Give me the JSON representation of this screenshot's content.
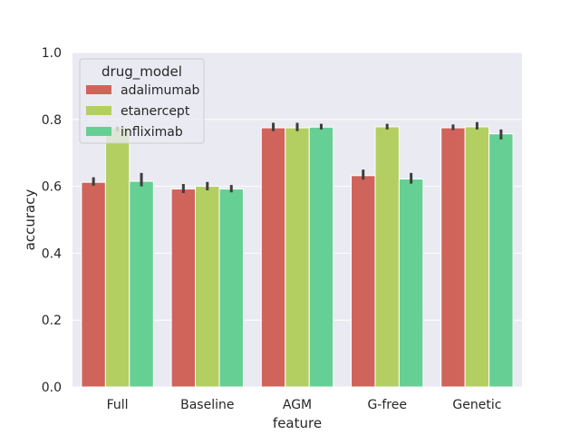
{
  "chart_data": {
    "type": "bar",
    "title": "",
    "xlabel": "feature",
    "ylabel": "accuracy",
    "ylim": [
      0,
      1.0
    ],
    "yticks": [
      0.0,
      0.2,
      0.4,
      0.6,
      0.8,
      1.0
    ],
    "ytick_labels": [
      "0.0",
      "0.2",
      "0.4",
      "0.6",
      "0.8",
      "1.0"
    ],
    "grid": true,
    "categories": [
      "Full",
      "Baseline",
      "AGM",
      "G-free",
      "Genetic"
    ],
    "legend": {
      "title": "drug_model",
      "placement": "top-left"
    },
    "series": [
      {
        "name": "adalimumab",
        "color": "#d0645a",
        "values": [
          0.612,
          0.592,
          0.775,
          0.632,
          0.775
        ],
        "err_low": [
          0.602,
          0.58,
          0.765,
          0.62,
          0.768
        ],
        "err_high": [
          0.627,
          0.607,
          0.79,
          0.65,
          0.785
        ]
      },
      {
        "name": "etanercept",
        "color": "#b3cf62",
        "values": [
          0.775,
          0.6,
          0.775,
          0.778,
          0.778
        ],
        "err_low": [
          0.765,
          0.588,
          0.765,
          0.77,
          0.77
        ],
        "err_high": [
          0.778,
          0.613,
          0.79,
          0.787,
          0.792
        ]
      },
      {
        "name": "infliximab",
        "color": "#66cf94",
        "values": [
          0.615,
          0.592,
          0.777,
          0.622,
          0.757
        ],
        "err_low": [
          0.6,
          0.582,
          0.77,
          0.608,
          0.74
        ],
        "err_high": [
          0.64,
          0.604,
          0.787,
          0.64,
          0.77
        ]
      }
    ]
  }
}
